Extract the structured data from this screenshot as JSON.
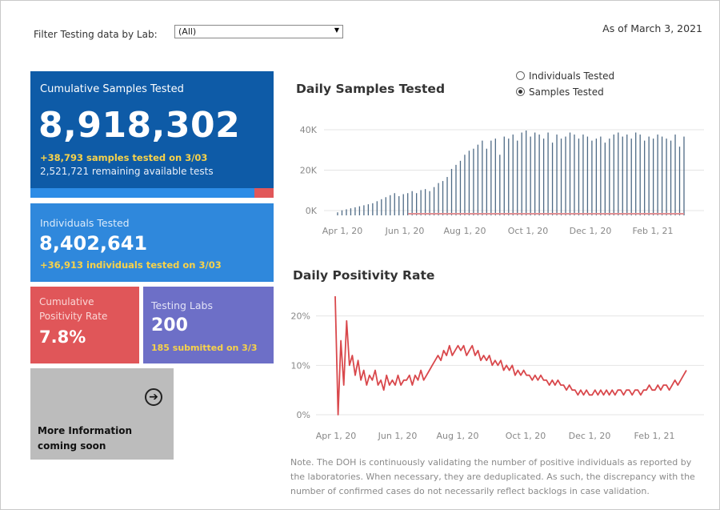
{
  "filter": {
    "label": "Filter Testing data by Lab:",
    "selected": "(All)"
  },
  "as_of": "As of March 3, 2021",
  "cumulative": {
    "title": "Cumulative Samples Tested",
    "value": "8,918,302",
    "highlight": "+38,793 samples tested on 3/03",
    "remaining": "2,521,721 remaining available tests"
  },
  "individuals": {
    "title": "Individuals Tested",
    "value": "8,402,641",
    "highlight": "+36,913  individuals  tested on 3/03"
  },
  "positivity": {
    "title_line1": "Cumulative",
    "title_line2": "Positivity Rate",
    "value": "7.8%"
  },
  "labs": {
    "title": "Testing Labs",
    "value": "200",
    "highlight": "185 submitted on 3/3"
  },
  "more_info": {
    "line1": "More Information",
    "line2": "coming soon",
    "icon": "arrow-circle-right-icon"
  },
  "toggle": {
    "option1": "Individuals Tested",
    "option2": "Samples Tested",
    "selected": "Samples Tested"
  },
  "colors": {
    "dark_blue": "#0e5ba7",
    "blue": "#2f88dc",
    "red": "#e05659",
    "purple": "#6d6fc7",
    "gray": "#bcbcbc",
    "highlight": "#f7d24a"
  },
  "chart_data": [
    {
      "type": "bar",
      "title": "Daily Samples Tested",
      "xlabel": "",
      "ylabel": "",
      "x_ticks": [
        "Apr 1, 20",
        "Jun 1, 20",
        "Aug 1, 20",
        "Oct 1, 20",
        "Dec 1, 20",
        "Feb 1, 21"
      ],
      "y_ticks": [
        "0K",
        "20K",
        "40K"
      ],
      "ylim": [
        0,
        42000
      ],
      "grid": true,
      "series": [
        {
          "values": [
            1500,
            2500,
            3000,
            3500,
            4000,
            4500,
            5000,
            5500,
            6000,
            7000,
            8000,
            9000,
            10000,
            11000,
            9500,
            10500,
            11000,
            12000,
            11000,
            12500,
            13000,
            12000,
            14000,
            16000,
            17000,
            19000,
            23000,
            25000,
            27000,
            30000,
            32000,
            33000,
            35000,
            37000,
            33000,
            37000,
            38000,
            30000,
            39000,
            38000,
            40000,
            37000,
            41000,
            42000,
            39000,
            41000,
            40000,
            38000,
            41000,
            36000,
            40000,
            38000,
            39000,
            41000,
            40000,
            38000,
            40000,
            39000,
            37000,
            38000,
            39000,
            36000,
            38000,
            40000,
            41000,
            39000,
            40000,
            38000,
            41000,
            40000,
            37000,
            39000,
            38000,
            40000,
            39000,
            38000,
            37000,
            40000,
            34000,
            39000
          ]
        }
      ]
    },
    {
      "type": "line",
      "title": "Daily Positivity Rate",
      "xlabel": "",
      "ylabel": "",
      "x_ticks": [
        "Apr 1, 20",
        "Jun 1, 20",
        "Aug 1, 20",
        "Oct 1, 20",
        "Dec 1, 20",
        "Feb 1, 21"
      ],
      "y_ticks": [
        "0%",
        "10%",
        "20%"
      ],
      "ylim": [
        0,
        24
      ],
      "grid": true,
      "series": [
        {
          "values": [
            24,
            0,
            15,
            6,
            19,
            10,
            12,
            8,
            11,
            7,
            9,
            6,
            8,
            7,
            9,
            6,
            7,
            5,
            8,
            6,
            7,
            6,
            8,
            6,
            7,
            7,
            8,
            6,
            8,
            7,
            9,
            7,
            8,
            9,
            10,
            11,
            12,
            11,
            13,
            12,
            14,
            12,
            13,
            14,
            13,
            14,
            12,
            13,
            14,
            12,
            13,
            11,
            12,
            11,
            12,
            10,
            11,
            10,
            11,
            9,
            10,
            9,
            10,
            8,
            9,
            8,
            9,
            8,
            8,
            7,
            8,
            7,
            8,
            7,
            7,
            6,
            7,
            6,
            7,
            6,
            6,
            5,
            6,
            5,
            5,
            4,
            5,
            4,
            5,
            4,
            4,
            5,
            4,
            5,
            4,
            5,
            4,
            5,
            4,
            5,
            5,
            4,
            5,
            5,
            4,
            5,
            5,
            4,
            5,
            5,
            6,
            5,
            5,
            6,
            5,
            6,
            6,
            5,
            6,
            7,
            6,
            7,
            8,
            9
          ]
        }
      ]
    }
  ],
  "note": "Note. The DOH is continuously validating the number of positive individuals as reported by the laboratories. When necessary, they are deduplicated. As such, the discrepancy with the number of confirmed cases do not necessarily reflect backlogs in case validation."
}
